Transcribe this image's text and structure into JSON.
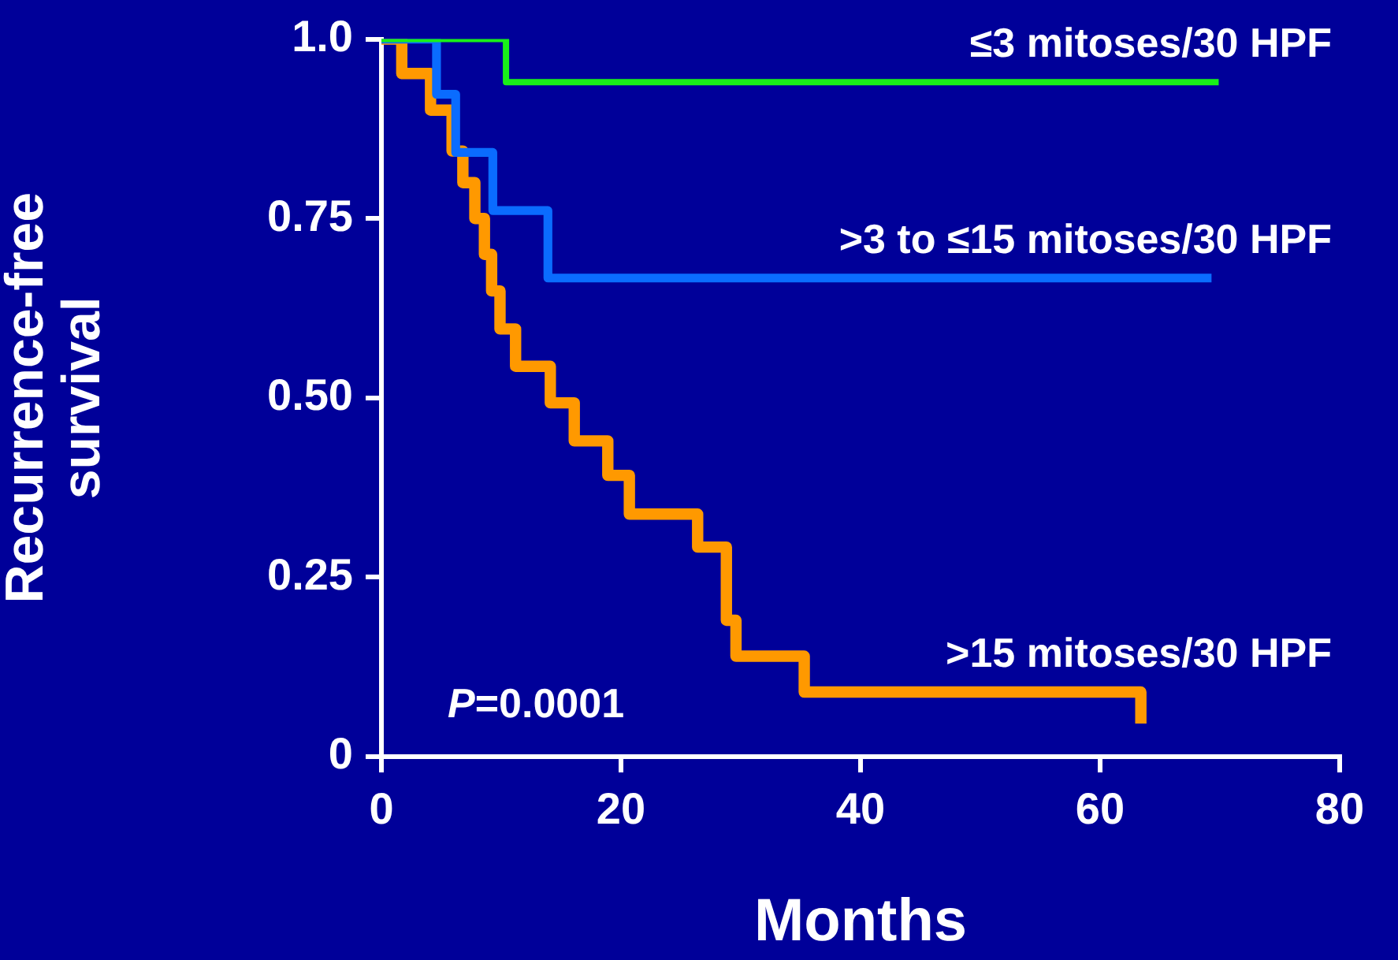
{
  "chart_data": {
    "type": "step",
    "xlabel": "Months",
    "ylabel": "Recurrence-free survival",
    "xlim": [
      0,
      80
    ],
    "xticks": [
      0,
      20,
      40,
      60,
      80
    ],
    "ylim": [
      0,
      1
    ],
    "yticks": [
      {
        "value": 0,
        "label": "0"
      },
      {
        "value": 0.25,
        "label": "0.25"
      },
      {
        "value": 0.5,
        "label": "0.50"
      },
      {
        "value": 0.75,
        "label": "0.75"
      },
      {
        "value": 1,
        "label": "1.0"
      }
    ],
    "grid": false,
    "legend": false,
    "marker": "none",
    "line_style": "solid",
    "annotations": [
      "P=0.0001"
    ],
    "series": [
      {
        "name": "≤3 mitoses/30 HPF",
        "color": "#19f019",
        "x": [
          0,
          10.4,
          69.9
        ],
        "values": [
          1,
          0.94,
          0.94
        ]
      },
      {
        "name": ">3 to ≤15 mitoses/30 HPF",
        "color": "#0a6cff",
        "x": [
          0,
          4.6,
          6.2,
          9.3,
          13.9,
          69.3
        ],
        "values": [
          1,
          0.923,
          0.842,
          0.761,
          0.667,
          0.667
        ]
      },
      {
        "name": ">15 mitoses/30 HPF",
        "color": "#ff9900",
        "x": [
          0,
          1.7,
          4.1,
          5.9,
          6.8,
          7.8,
          8.6,
          9.2,
          9.9,
          11.2,
          14.1,
          16.1,
          18.9,
          20.7,
          26.4,
          28.8,
          29.6,
          35.3,
          63.4,
          63.4
        ],
        "values": [
          1,
          0.952,
          0.901,
          0.844,
          0.8,
          0.75,
          0.7,
          0.649,
          0.596,
          0.544,
          0.493,
          0.44,
          0.392,
          0.338,
          0.292,
          0.19,
          0.14,
          0.09,
          0.09,
          0.046
        ]
      }
    ]
  }
}
